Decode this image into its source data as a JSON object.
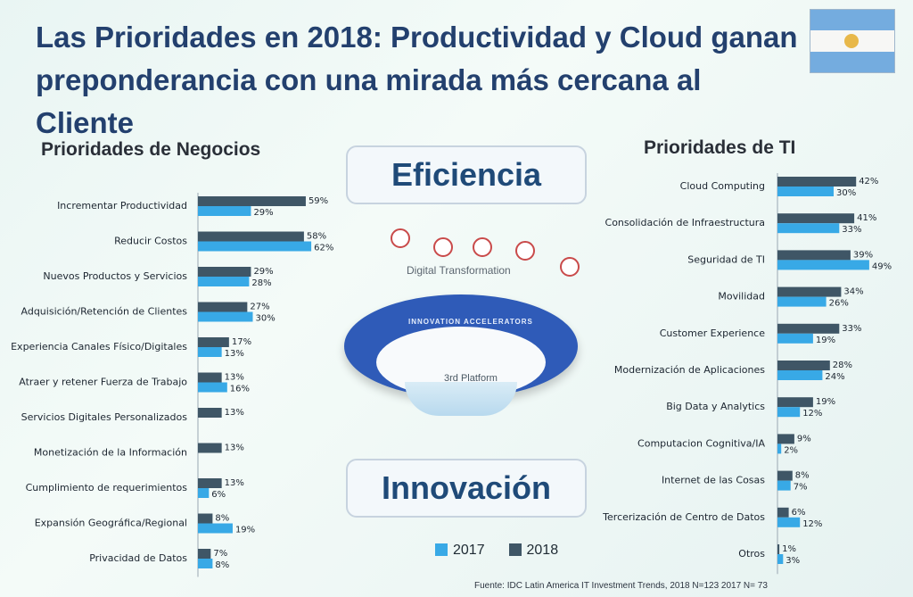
{
  "slide": {
    "title": "Las Prioridades en 2018: Productividad y Cloud ganan preponderancia con una mirada más cercana al Cliente",
    "center_top": "Eficiencia",
    "center_bottom": "Innovación",
    "diagram_title": "Digital Transformation",
    "diagram_ring_label": "INNOVATION ACCELERATORS",
    "diagram_platform": "3rd Platform",
    "source": "Fuente: IDC Latin America IT Investment Trends, 2018 N=123 2017 N= 73",
    "colors": {
      "y2017": "#38a9e6",
      "y2018": "#3f5666"
    }
  },
  "legend": {
    "y2017": "2017",
    "y2018": "2018"
  },
  "chart_data": [
    {
      "type": "bar",
      "title": "Prioridades de Negocios",
      "categories": [
        "Incrementar Productividad",
        "Reducir Costos",
        "Nuevos Productos y Servicios",
        "Adquisición/Retención de Clientes",
        "Experiencia Canales Físico/Digitales",
        "Atraer y retener Fuerza de Trabajo",
        "Servicios Digitales Personalizados",
        "Monetización de la Información",
        "Cumplimiento de requerimientos",
        "Expansión Geográfica/Regional",
        "Privacidad de Datos"
      ],
      "series": [
        {
          "name": "2018",
          "values": [
            59,
            58,
            29,
            27,
            17,
            13,
            13,
            13,
            13,
            8,
            7
          ],
          "labels": [
            "59%",
            "58%",
            "29%",
            "27%",
            "17%",
            "13%",
            "13%",
            "13%",
            "13%",
            "8%",
            "7%"
          ]
        },
        {
          "name": "2017",
          "values": [
            29,
            62,
            28,
            30,
            13,
            16,
            null,
            null,
            6,
            19,
            8
          ],
          "labels": [
            "29%",
            "62%",
            "28%",
            "30%",
            "13%",
            "16%",
            "",
            "",
            "6%",
            "19%",
            "8%"
          ]
        }
      ]
    },
    {
      "type": "bar",
      "title": "Prioridades de TI",
      "categories": [
        "Cloud Computing",
        "Consolidación de Infraestructura",
        "Seguridad de TI",
        "Movilidad",
        "Customer Experience",
        "Modernización de Aplicaciones",
        "Big Data y Analytics",
        "Computacion Cognitiva/IA",
        "Internet de las Cosas",
        "Tercerización de Centro de Datos",
        "Otros"
      ],
      "series": [
        {
          "name": "2018",
          "values": [
            42,
            41,
            39,
            34,
            33,
            28,
            19,
            9,
            8,
            6,
            1
          ],
          "labels": [
            "42%",
            "41%",
            "39%",
            "34%",
            "33%",
            "28%",
            "19%",
            "9%",
            "8%",
            "6%",
            "1%"
          ]
        },
        {
          "name": "2017",
          "values": [
            30,
            33,
            49,
            26,
            19,
            24,
            12,
            2,
            7,
            12,
            3
          ],
          "labels": [
            "30%",
            "33%",
            "49%",
            "26%",
            "19%",
            "24%",
            "12%",
            "2%",
            "7%",
            "12%",
            "3%"
          ]
        }
      ]
    }
  ]
}
